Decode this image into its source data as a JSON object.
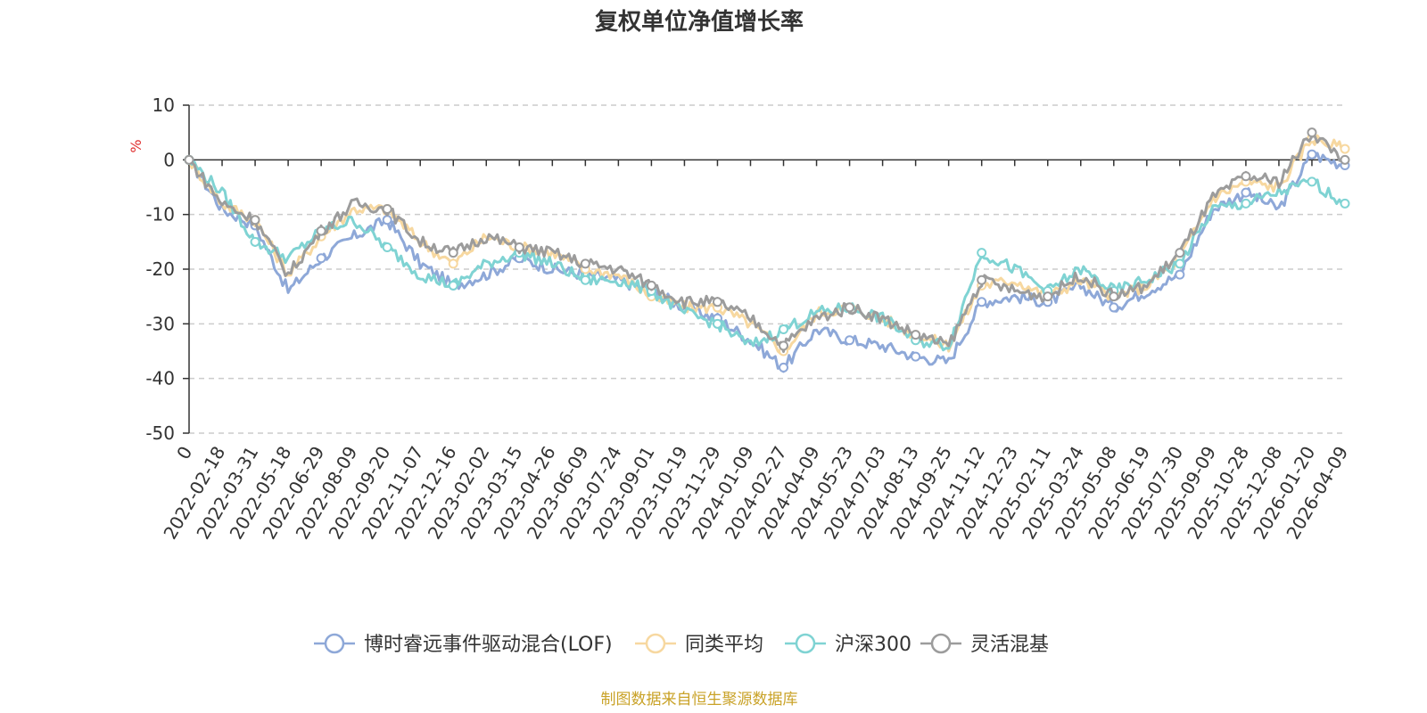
{
  "source_note": "制图数据来自恒生聚源数据库",
  "chart_data": {
    "type": "line",
    "title": "复权单位净值增长率",
    "ylabel": "%",
    "ylim": [
      -50,
      10
    ],
    "yticks": [
      10,
      0,
      -10,
      -20,
      -30,
      -40,
      -50
    ],
    "grid": true,
    "legend_position": "bottom-center",
    "x_ticks": [
      "0",
      "2022-02-18",
      "2022-03-31",
      "2022-05-18",
      "2022-06-29",
      "2022-08-09",
      "2022-09-20",
      "2022-11-07",
      "2022-12-16",
      "2023-02-02",
      "2023-03-15",
      "2023-04-26",
      "2023-06-09",
      "2023-07-24",
      "2023-09-01",
      "2023-10-19",
      "2023-11-29",
      "2024-01-09",
      "2024-02-27",
      "2024-04-09",
      "2024-05-23",
      "2024-07-03",
      "2024-08-13",
      "2024-09-25",
      "2024-11-12",
      "2024-12-23",
      "2025-02-11",
      "2025-03-24",
      "2025-05-08",
      "2025-06-19",
      "2025-07-30",
      "2025-09-09",
      "2025-10-28",
      "2025-12-08",
      "2026-01-20",
      "2026-04-09"
    ],
    "series": [
      {
        "name": "博时睿远事件驱动混合(LOF)",
        "color": "#8ea8d8",
        "values": [
          0,
          -9,
          -12,
          -24,
          -18,
          -14,
          -11,
          -19,
          -23,
          -21,
          -18,
          -20,
          -21,
          -22,
          -24,
          -27,
          -29,
          -33,
          -38,
          -31,
          -33,
          -34,
          -36,
          -37,
          -26,
          -25,
          -26,
          -23,
          -27,
          -24,
          -21,
          -9,
          -6,
          -9,
          1,
          -1
        ]
      },
      {
        "name": "同类平均",
        "color": "#f7d8a0",
        "values": [
          0,
          -8,
          -11,
          -21,
          -14,
          -9,
          -9,
          -15,
          -19,
          -14,
          -16,
          -17,
          -20,
          -21,
          -25,
          -27,
          -27,
          -30,
          -35,
          -28,
          -27,
          -29,
          -32,
          -34,
          -23,
          -22,
          -25,
          -22,
          -25,
          -23,
          -18,
          -7,
          -4,
          -5,
          4,
          2
        ]
      },
      {
        "name": "沪深300",
        "color": "#7fd3d3",
        "values": [
          0,
          -6,
          -15,
          -18,
          -13,
          -11,
          -16,
          -21,
          -23,
          -19,
          -17,
          -19,
          -22,
          -22,
          -24,
          -28,
          -30,
          -34,
          -31,
          -28,
          -27,
          -29,
          -33,
          -34,
          -17,
          -20,
          -24,
          -20,
          -24,
          -22,
          -19,
          -9,
          -8,
          -6,
          -4,
          -8
        ]
      },
      {
        "name": "灵活混基",
        "color": "#9c9c9c",
        "values": [
          0,
          -8,
          -11,
          -21,
          -13,
          -8,
          -9,
          -15,
          -17,
          -14,
          -16,
          -17,
          -19,
          -20,
          -23,
          -26,
          -26,
          -29,
          -34,
          -29,
          -27,
          -29,
          -32,
          -34,
          -22,
          -24,
          -25,
          -21,
          -25,
          -23,
          -17,
          -7,
          -3,
          -4,
          5,
          0
        ]
      }
    ]
  }
}
